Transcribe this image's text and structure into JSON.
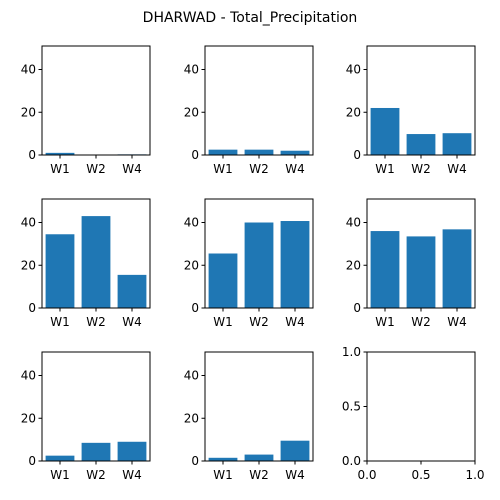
{
  "title": "DHARWAD - Total_Precipitation",
  "chart_data": [
    {
      "type": "bar",
      "categories": [
        "W1",
        "W2",
        "W4"
      ],
      "values": [
        1.0,
        0.2,
        0.3
      ],
      "ylim": [
        0,
        51
      ],
      "yticks": [
        "0",
        "20",
        "40"
      ]
    },
    {
      "type": "bar",
      "categories": [
        "W1",
        "W2",
        "W4"
      ],
      "values": [
        2.5,
        2.5,
        2.0
      ],
      "ylim": [
        0,
        51
      ],
      "yticks": [
        "0",
        "20",
        "40"
      ]
    },
    {
      "type": "bar",
      "categories": [
        "W1",
        "W2",
        "W4"
      ],
      "values": [
        22.0,
        9.8,
        10.2
      ],
      "ylim": [
        0,
        51
      ],
      "yticks": [
        "0",
        "20",
        "40"
      ]
    },
    {
      "type": "bar",
      "categories": [
        "W1",
        "W2",
        "W4"
      ],
      "values": [
        34.5,
        43.0,
        15.5
      ],
      "ylim": [
        0,
        51
      ],
      "yticks": [
        "0",
        "20",
        "40"
      ]
    },
    {
      "type": "bar",
      "categories": [
        "W1",
        "W2",
        "W4"
      ],
      "values": [
        25.5,
        40.0,
        40.7
      ],
      "ylim": [
        0,
        51
      ],
      "yticks": [
        "0",
        "20",
        "40"
      ]
    },
    {
      "type": "bar",
      "categories": [
        "W1",
        "W2",
        "W4"
      ],
      "values": [
        36.0,
        33.5,
        36.8
      ],
      "ylim": [
        0,
        51
      ],
      "yticks": [
        "0",
        "20",
        "40"
      ]
    },
    {
      "type": "bar",
      "categories": [
        "W1",
        "W2",
        "W4"
      ],
      "values": [
        2.5,
        8.5,
        9.0
      ],
      "ylim": [
        0,
        51
      ],
      "yticks": [
        "0",
        "20",
        "40"
      ]
    },
    {
      "type": "bar",
      "categories": [
        "W1",
        "W2",
        "W4"
      ],
      "values": [
        1.5,
        3.0,
        9.5
      ],
      "ylim": [
        0,
        51
      ],
      "yticks": [
        "0",
        "20",
        "40"
      ]
    },
    {
      "type": "empty",
      "xlim": [
        0,
        1
      ],
      "ylim": [
        0,
        1
      ],
      "xticks": [
        "0.0",
        "0.5",
        "1.0"
      ],
      "yticks": [
        "0.0",
        "0.5",
        "1.0"
      ]
    }
  ],
  "colors": {
    "bar": "#1f77b4",
    "axes": "#000000",
    "background": "#ffffff"
  }
}
